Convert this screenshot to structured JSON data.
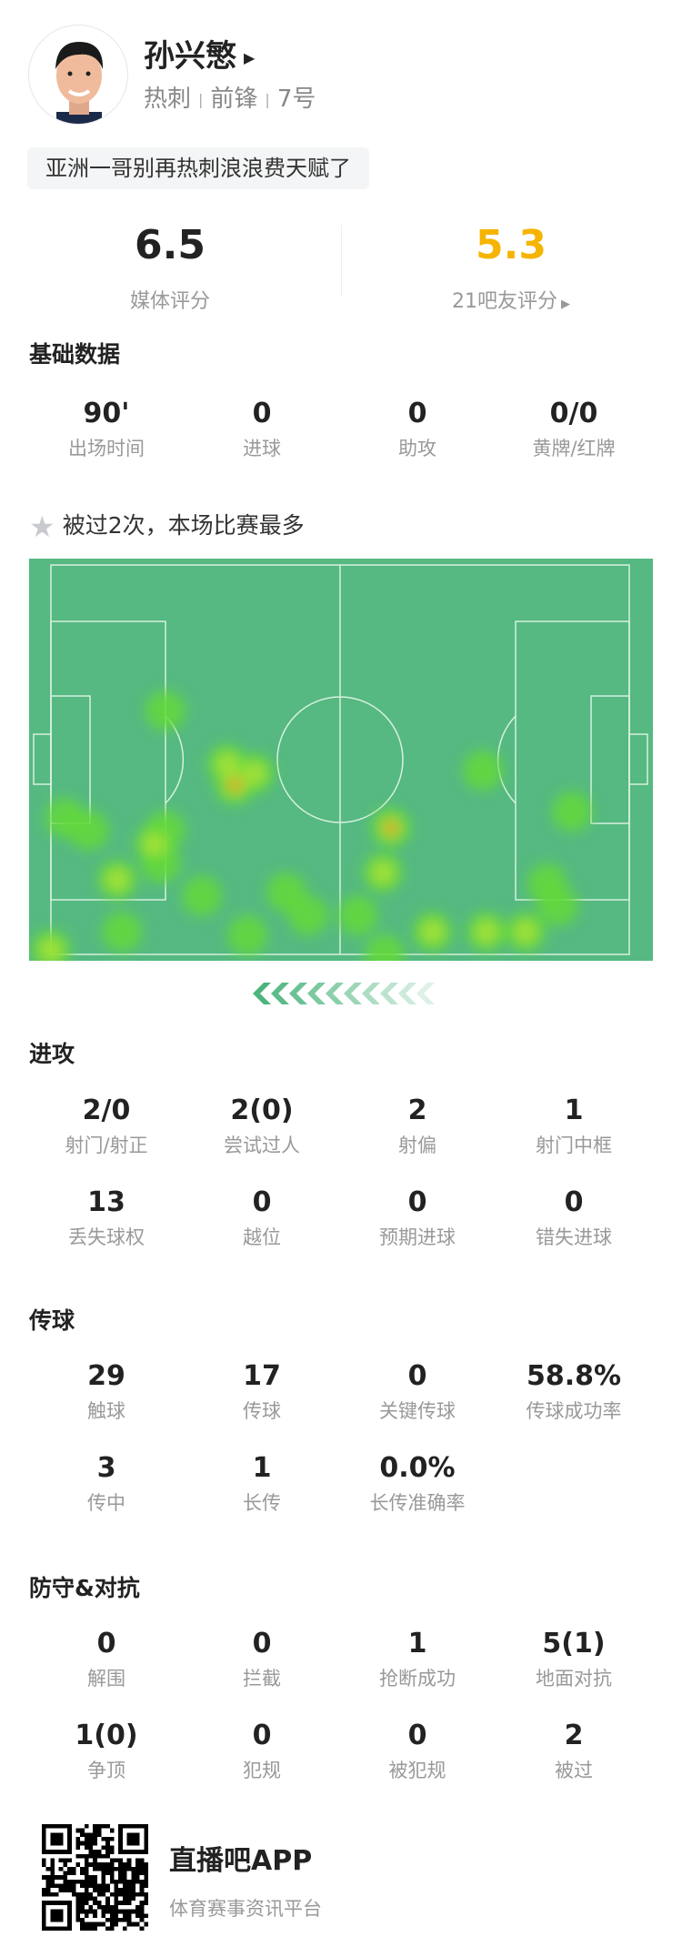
{
  "player": {
    "name": "孙兴慜",
    "team": "热刺",
    "position": "前锋",
    "number": "7号",
    "comment": "亚洲一哥别再热刺浪浪费天赋了"
  },
  "ratings": {
    "media": {
      "value": "6.5",
      "label": "媒体评分"
    },
    "fans": {
      "value": "5.3",
      "label": "21吧友评分"
    },
    "fan_color": "#f5b400"
  },
  "basic": {
    "title": "基础数据",
    "items": [
      {
        "v": "90'",
        "l": "出场时间"
      },
      {
        "v": "0",
        "l": "进球"
      },
      {
        "v": "0",
        "l": "助攻"
      },
      {
        "v": "0/0",
        "l": "黄牌/红牌"
      }
    ]
  },
  "highlight": {
    "text": "被过2次，本场比赛最多",
    "icon": "star-icon"
  },
  "heatmap": {
    "pitch_color": "#55b981",
    "line_color": "#d8f0e0",
    "attack_direction": "left",
    "points": [
      [
        19.8,
        37.4,
        1
      ],
      [
        31.8,
        56.5,
        3
      ],
      [
        30.5,
        51.2,
        2
      ],
      [
        35.2,
        53.5,
        2
      ],
      [
        58.8,
        67.5,
        3
      ],
      [
        57.4,
        79,
        2
      ],
      [
        74.7,
        52.8,
        1
      ],
      [
        90.1,
        63.3,
        1
      ],
      [
        2.5,
        65,
        1
      ],
      [
        6.6,
        68.2,
        1
      ],
      [
        17.9,
        71.7,
        2
      ],
      [
        19.8,
        68.2,
        1
      ],
      [
        19,
        76.6,
        1
      ],
      [
        11.5,
        80.8,
        2
      ],
      [
        26.1,
        85,
        1
      ],
      [
        40.7,
        84.1,
        1
      ],
      [
        44.5,
        90,
        1
      ],
      [
        53.1,
        90,
        1
      ],
      [
        12.3,
        94.2,
        1
      ],
      [
        34,
        95.1,
        1
      ],
      [
        0,
        98.8,
        2
      ],
      [
        57.7,
        100,
        1
      ],
      [
        66,
        94.2,
        2
      ],
      [
        75.3,
        94.2,
        2
      ],
      [
        82.1,
        94.2,
        2
      ],
      [
        85.8,
        81.8,
        1
      ],
      [
        87.7,
        87.6,
        1
      ]
    ]
  },
  "attack": {
    "title": "进攻",
    "rows": [
      [
        {
          "v": "2/0",
          "l": "射门/射正"
        },
        {
          "v": "2(0)",
          "l": "尝试过人"
        },
        {
          "v": "2",
          "l": "射偏"
        },
        {
          "v": "1",
          "l": "射门中框"
        }
      ],
      [
        {
          "v": "13",
          "l": "丢失球权"
        },
        {
          "v": "0",
          "l": "越位"
        },
        {
          "v": "0",
          "l": "预期进球"
        },
        {
          "v": "0",
          "l": "错失进球"
        }
      ]
    ]
  },
  "passing": {
    "title": "传球",
    "rows": [
      [
        {
          "v": "29",
          "l": "触球"
        },
        {
          "v": "17",
          "l": "传球"
        },
        {
          "v": "0",
          "l": "关键传球"
        },
        {
          "v": "58.8%",
          "l": "传球成功率"
        }
      ],
      [
        {
          "v": "3",
          "l": "传中"
        },
        {
          "v": "1",
          "l": "长传"
        },
        {
          "v": "0.0%",
          "l": "长传准确率"
        }
      ]
    ]
  },
  "defense": {
    "title": "防守&对抗",
    "rows": [
      [
        {
          "v": "0",
          "l": "解围"
        },
        {
          "v": "0",
          "l": "拦截"
        },
        {
          "v": "1",
          "l": "抢断成功"
        },
        {
          "v": "5(1)",
          "l": "地面对抗"
        }
      ],
      [
        {
          "v": "1(0)",
          "l": "争顶"
        },
        {
          "v": "0",
          "l": "犯规"
        },
        {
          "v": "0",
          "l": "被犯规"
        },
        {
          "v": "2",
          "l": "被过"
        }
      ]
    ]
  },
  "footer": {
    "app": "直播吧APP",
    "tagline": "体育赛事资讯平台"
  }
}
